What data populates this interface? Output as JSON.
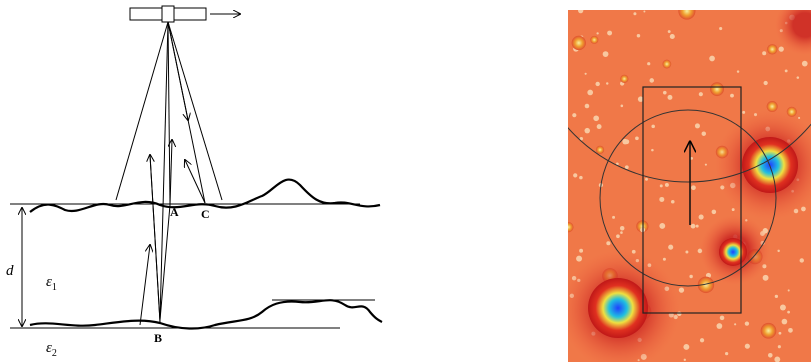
{
  "labels": {
    "a": "A",
    "b": "B",
    "c": "C",
    "d": "d",
    "epsilon1": {
      "symbol": "ε",
      "subscript": "1"
    },
    "epsilon2": {
      "symbol": "ε",
      "subscript": "2"
    }
  }
}
